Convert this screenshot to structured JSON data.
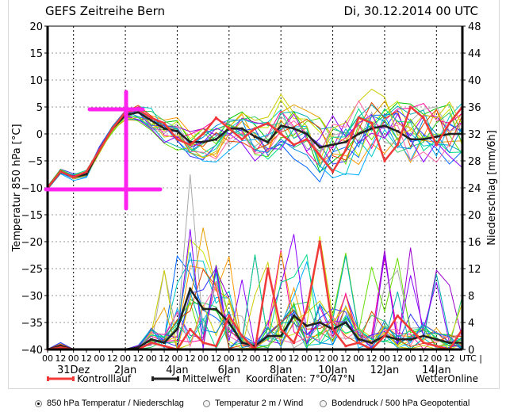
{
  "header": {
    "title": "GEFS Zeitreihe Bern",
    "datetime": "Di, 30.12.2014 00 UTC"
  },
  "chart_data": {
    "type": "line",
    "title": "GEFS Zeitreihe Bern",
    "subtitle": "Di, 30.12.2014 00 UTC",
    "ylabel_left": "Temperatur 850 hPa [°C]",
    "ylabel_right": "Niederschlag [mm/6h]",
    "ylim_left": [
      -40,
      20
    ],
    "ylim_right": [
      0,
      48
    ],
    "yticks_left": [
      "20",
      "15",
      "10",
      "5",
      "0",
      "-5",
      "-10",
      "-15",
      "-20",
      "-25",
      "-30",
      "-35",
      "-40"
    ],
    "yticks_right": [
      "48",
      "44",
      "40",
      "36",
      "32",
      "28",
      "24",
      "20",
      "16",
      "12",
      "8",
      "4",
      "0"
    ],
    "xtick_hours": [
      "00",
      "12",
      "00",
      "12",
      "00",
      "12",
      "00",
      "12",
      "00",
      "12",
      "00",
      "12",
      "00",
      "12",
      "00",
      "12",
      "00",
      "12",
      "00",
      "12",
      "00",
      "12",
      "00",
      "12",
      "00",
      "12",
      "00",
      "12",
      "00",
      "12",
      "00",
      "12"
    ],
    "xtick_unit": "UTC |",
    "xdate_labels": [
      "31Dez",
      "2Jan",
      "4Jan",
      "6Jan",
      "8Jan",
      "10Jan",
      "12Jan",
      "14Jan"
    ],
    "x_step_hours": 12,
    "grid": true,
    "legend": {
      "position": "bottom",
      "items": [
        {
          "label": "Kontrolllauf",
          "color": "#f03a3a"
        },
        {
          "label": "Mittelwert",
          "color": "#222222"
        }
      ],
      "coordinates": "Koordinaten: 7°O/47°N",
      "source": "WetterOnline"
    },
    "series": [
      {
        "name": "Mittelwert Temperatur 850 hPa",
        "axis": "left",
        "color": "#222222",
        "values": [
          -10,
          -7,
          -8,
          -7.5,
          -3,
          1,
          3.5,
          4,
          2.5,
          1,
          0.5,
          -1.5,
          -1.5,
          -1,
          1,
          1,
          -0.5,
          -1.5,
          1.5,
          1,
          0,
          -2.5,
          -2,
          -1.5,
          0,
          1,
          1.5,
          0.5,
          -1,
          -1,
          -0.5,
          0,
          0
        ]
      },
      {
        "name": "Kontrolllauf Temperatur 850 hPa",
        "axis": "left",
        "color": "#f03a3a",
        "values": [
          -10,
          -7,
          -8,
          -7,
          -3,
          1,
          4,
          4.5,
          3,
          2,
          -1,
          -2,
          0,
          3,
          1,
          -1,
          1,
          2,
          0,
          -2,
          -1,
          -4,
          -7,
          -3,
          3,
          2,
          -5,
          -2,
          5,
          3,
          -2,
          2,
          5
        ]
      },
      {
        "name": "Mittelwert Niederschlag",
        "axis": "right",
        "color": "#222222",
        "values": [
          0,
          0.5,
          0,
          0,
          0,
          0,
          0,
          0.3,
          1.5,
          1,
          3,
          9,
          6,
          6,
          4,
          1,
          0.5,
          2,
          2,
          5,
          3.5,
          4,
          3,
          4,
          1.5,
          1,
          2,
          1.5,
          1.5,
          2,
          1.5,
          1,
          1
        ]
      },
      {
        "name": "Kontrolllauf Niederschlag",
        "axis": "right",
        "color": "#f03a3a",
        "values": [
          0,
          0.3,
          0,
          0,
          0,
          0,
          0,
          0,
          1,
          0.5,
          0,
          3,
          1,
          0.5,
          5,
          2,
          0,
          12,
          3,
          1,
          6,
          16,
          3,
          0.5,
          1,
          0,
          2,
          5,
          3,
          1,
          0.5,
          0,
          3
        ]
      }
    ],
    "annotation": "magenta crosshair marker"
  },
  "options": {
    "items": [
      {
        "label": "850 hPa Temperatur / Niederschlag",
        "selected": true
      },
      {
        "label": "Temperatur 2 m / Wind",
        "selected": false
      },
      {
        "label": "Bodendruck / 500 hPa Geopotential",
        "selected": false
      }
    ]
  },
  "colors": {
    "control": "#f03a3a",
    "mean": "#222222",
    "marker": "#ff22ee",
    "grid": "#999999",
    "members": [
      "#00c800",
      "#0064ff",
      "#ff9900",
      "#00c8c8",
      "#c8e600",
      "#9900cc",
      "#ff0099",
      "#00aaff",
      "#aaaaaa",
      "#33cc66",
      "#e6a000",
      "#3333ff",
      "#66dd00",
      "#00b0b0",
      "#dd4400",
      "#8800ff",
      "#cccc00",
      "#00dd88",
      "#ff66aa",
      "#0088dd"
    ]
  }
}
